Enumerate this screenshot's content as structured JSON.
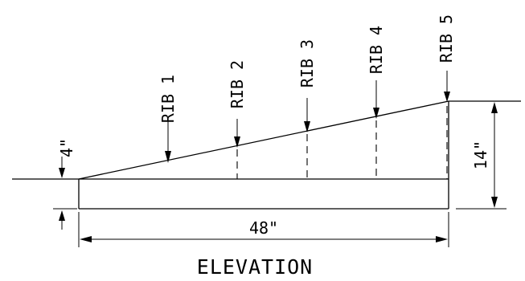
{
  "drawing": {
    "title": "ELEVATION",
    "dimensions": {
      "left_height": "4\"",
      "right_height": "14\"",
      "length": "48\""
    },
    "ribs": [
      {
        "label": "RIB 1"
      },
      {
        "label": "RIB 2"
      },
      {
        "label": "RIB 3"
      },
      {
        "label": "RIB 4"
      },
      {
        "label": "RIB 5"
      }
    ]
  }
}
